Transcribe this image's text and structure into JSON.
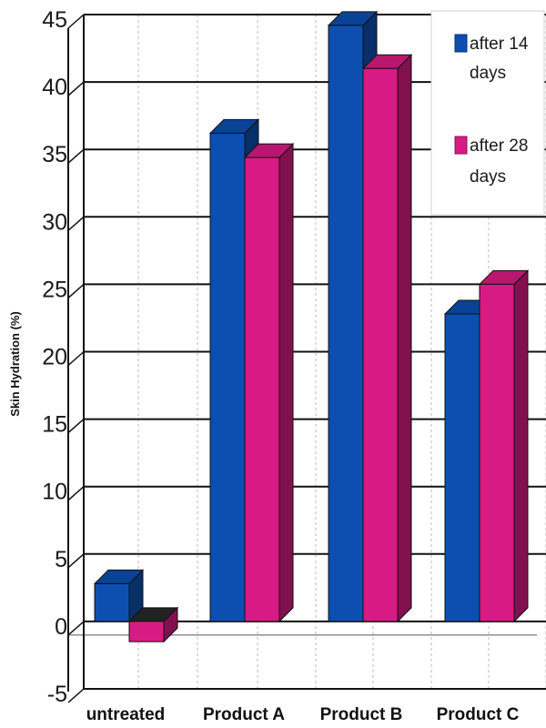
{
  "chart_data": {
    "type": "bar",
    "ylabel": "Skin Hydration (%)",
    "categories": [
      "untreated",
      "Product A",
      "Product B",
      "Product C"
    ],
    "series": [
      {
        "name": "after 14 days",
        "color": "#0c4fb0",
        "values": [
          2.8,
          36.2,
          44.2,
          22.8
        ]
      },
      {
        "name": "after 28 days",
        "color": "#d81b84",
        "values": [
          -1.5,
          34.4,
          41.0,
          25.0
        ]
      }
    ],
    "ylim": [
      -5,
      45
    ],
    "yticks": [
      -5,
      0,
      5,
      10,
      15,
      20,
      25,
      30,
      35,
      40,
      45
    ],
    "grid": true,
    "legend_position": "top-right"
  }
}
